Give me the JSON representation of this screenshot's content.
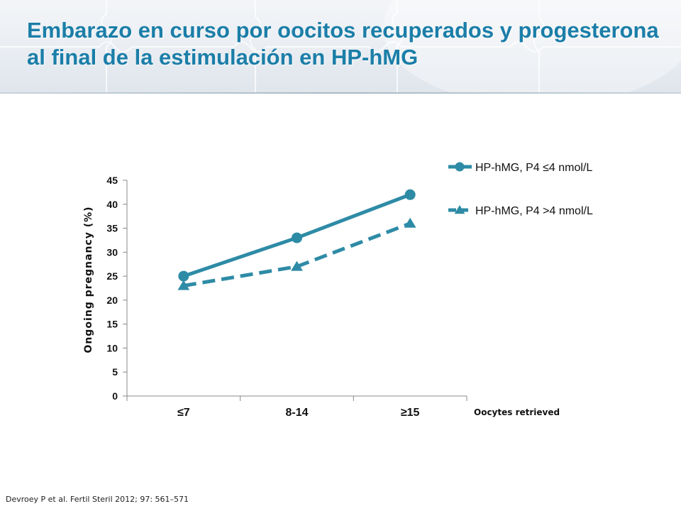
{
  "slide": {
    "title_line1": "Embarazo en curso por oocitos recuperados y progesterona",
    "title_line2": "al final de la estimulación en HP-hMG",
    "citation": "Devroey P et al. Fertil Steril 2012; 97: 561–571"
  },
  "chart_data": {
    "type": "line",
    "categories": [
      "≤7",
      "8-14",
      "≥15"
    ],
    "xlabel": "Oocytes retrieved",
    "ylabel": "Ongoing pregnancy (%)",
    "ylim": [
      0,
      45
    ],
    "yticks": [
      0,
      5,
      10,
      15,
      20,
      25,
      30,
      35,
      40,
      45
    ],
    "grid": false,
    "legend_position": "top-right",
    "series": [
      {
        "name": "HP-hMG, P4 ≤4 nmol/L",
        "values": [
          25,
          33,
          42
        ],
        "style": "solid",
        "marker": "circle",
        "color": "#2e8ba6"
      },
      {
        "name": "HP-hMG, P4 >4 nmol/L",
        "values": [
          23,
          27,
          36
        ],
        "style": "dashed",
        "marker": "triangle",
        "color": "#2e8ba6"
      }
    ]
  }
}
